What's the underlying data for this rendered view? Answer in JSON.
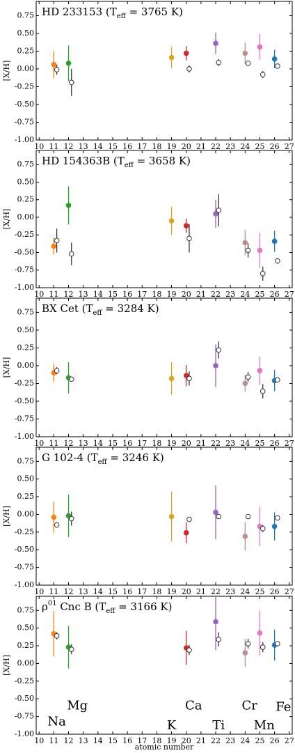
{
  "chart_data": [
    {
      "type": "errorbar",
      "title_parts": [
        {
          "text": "HD 233153 (T"
        },
        {
          "text": "eff",
          "script": "sub"
        },
        {
          "text": " = 3765 K)"
        }
      ],
      "ylabel": "[X/H]",
      "xlim": [
        9.8,
        27.2
      ],
      "ylim": [
        -1.0,
        0.95
      ],
      "xticks": [
        10,
        11,
        12,
        13,
        14,
        15,
        16,
        17,
        18,
        19,
        20,
        21,
        22,
        23,
        24,
        25,
        26,
        27
      ],
      "yticks": [
        0.75,
        {
          "value": 0.5,
          "label": "0.50"
        },
        0.25,
        {
          "value": 0,
          "label": "0.00"
        },
        -0.25,
        {
          "value": -0.5,
          "label": "-0.50"
        },
        -0.75,
        {
          "value": -1,
          "label": "-1.00"
        }
      ],
      "series": [
        {
          "x": [
            11,
            12,
            19,
            20,
            22,
            24,
            25,
            26
          ],
          "colors": [
            "#ff7f0e",
            "#2ca02c",
            "#daa520",
            "#d62728",
            "#9467bd",
            "#bc8f8f",
            "#e377c2",
            "#1f77b4"
          ],
          "filled": true,
          "values": [
            0.06,
            0.08,
            0.16,
            0.22,
            0.36,
            0.22,
            0.31,
            0.14
          ],
          "errors": [
            0.19,
            0.25,
            0.15,
            0.1,
            0.15,
            0.15,
            0.18,
            0.13
          ]
        },
        {
          "x": [
            11.2,
            12.2,
            20.2,
            22.2,
            24.2,
            25.2,
            26.2
          ],
          "color": "#333333",
          "filled": false,
          "values": [
            -0.01,
            -0.19,
            0.0,
            0.09,
            0.08,
            -0.08,
            0.04
          ],
          "errors": [
            0.07,
            0.19,
            0.05,
            0.05,
            0.03,
            0.05,
            0.02
          ]
        }
      ]
    },
    {
      "type": "errorbar",
      "title_parts": [
        {
          "text": "HD 154363B (T"
        },
        {
          "text": "eff",
          "script": "sub"
        },
        {
          "text": " = 3658 K)"
        }
      ],
      "ylabel": "[X/H]",
      "xlim": [
        9.8,
        27.2
      ],
      "ylim": [
        -1.0,
        0.95
      ],
      "xticks": [
        10,
        11,
        12,
        13,
        14,
        15,
        16,
        17,
        18,
        19,
        20,
        21,
        22,
        23,
        24,
        25,
        26,
        27
      ],
      "yticks": [
        0.75,
        {
          "value": 0.5,
          "label": "0.50"
        },
        0.25,
        {
          "value": 0,
          "label": "0.00"
        },
        -0.25,
        {
          "value": -0.5,
          "label": "-0.50"
        },
        -0.75,
        {
          "value": -1,
          "label": "-1.00"
        }
      ],
      "series": [
        {
          "x": [
            11,
            12,
            19,
            20,
            22,
            24,
            25,
            26
          ],
          "colors": [
            "#ff7f0e",
            "#2ca02c",
            "#daa520",
            "#d62728",
            "#9467bd",
            "#bc8f8f",
            "#e377c2",
            "#1f77b4"
          ],
          "filled": true,
          "values": [
            -0.41,
            0.17,
            -0.05,
            -0.12,
            0.05,
            -0.36,
            -0.47,
            -0.34
          ],
          "errors": [
            0.12,
            0.27,
            0.2,
            0.1,
            0.2,
            0.18,
            0.25,
            0.15
          ]
        },
        {
          "x": [
            11.2,
            12.2,
            20.2,
            22.2,
            24.2,
            25.2,
            26.2
          ],
          "color": "#333333",
          "filled": false,
          "values": [
            -0.33,
            -0.52,
            -0.3,
            0.1,
            -0.47,
            -0.8,
            -0.62
          ],
          "errors": [
            0.17,
            0.16,
            0.2,
            0.23,
            0.1,
            0.1,
            0.04
          ]
        }
      ]
    },
    {
      "type": "errorbar",
      "title_parts": [
        {
          "text": "BX Cet (T"
        },
        {
          "text": "eff",
          "script": "sub"
        },
        {
          "text": " = 3284 K)"
        }
      ],
      "ylabel": "[X/H]",
      "xlim": [
        9.8,
        27.2
      ],
      "ylim": [
        -1.0,
        0.95
      ],
      "xticks": [
        10,
        11,
        12,
        13,
        14,
        15,
        16,
        17,
        18,
        19,
        20,
        21,
        22,
        23,
        24,
        25,
        26,
        27
      ],
      "yticks": [
        0.75,
        {
          "value": 0.5,
          "label": "0.50"
        },
        0.25,
        {
          "value": 0,
          "label": "0.00"
        },
        -0.25,
        {
          "value": -0.5,
          "label": "-0.50"
        },
        -0.75,
        {
          "value": -1,
          "label": "-1.00"
        }
      ],
      "series": [
        {
          "x": [
            11,
            12,
            19,
            20,
            22,
            24,
            25,
            26
          ],
          "colors": [
            "#ff7f0e",
            "#2ca02c",
            "#daa520",
            "#d62728",
            "#9467bd",
            "#bc8f8f",
            "#e377c2",
            "#1f77b4"
          ],
          "filled": true,
          "values": [
            -0.1,
            -0.17,
            -0.18,
            -0.14,
            0.0,
            -0.25,
            -0.07,
            -0.21
          ],
          "errors": [
            0.13,
            0.22,
            0.23,
            0.15,
            0.3,
            0.12,
            0.2,
            0.15
          ]
        },
        {
          "x": [
            11.2,
            12.2,
            20.2,
            22.2,
            24.2,
            25.2,
            26.2
          ],
          "color": "#333333",
          "filled": false,
          "values": [
            -0.07,
            -0.19,
            -0.18,
            0.22,
            -0.16,
            -0.36,
            -0.2
          ],
          "errors": [
            0.05,
            0.01,
            0.1,
            0.12,
            0.07,
            0.1,
            0.03
          ]
        }
      ]
    },
    {
      "type": "errorbar",
      "title_parts": [
        {
          "text": "G 102-4 (T"
        },
        {
          "text": "eff",
          "script": "sub"
        },
        {
          "text": " = 3246 K)"
        }
      ],
      "ylabel": "[X/H]",
      "xlim": [
        9.8,
        27.2
      ],
      "ylim": [
        -1.0,
        0.95
      ],
      "xticks": [
        10,
        11,
        12,
        13,
        14,
        15,
        16,
        17,
        18,
        19,
        20,
        21,
        22,
        23,
        24,
        25,
        26,
        27
      ],
      "yticks": [
        0.75,
        {
          "value": 0.5,
          "label": "0.50"
        },
        0.25,
        {
          "value": 0,
          "label": "0.00"
        },
        -0.25,
        {
          "value": -0.5,
          "label": "-0.50"
        },
        -0.75,
        {
          "value": -1,
          "label": "-1.00"
        }
      ],
      "series": [
        {
          "x": [
            11,
            12,
            19,
            20,
            22,
            24,
            25,
            26
          ],
          "colors": [
            "#ff7f0e",
            "#2ca02c",
            "#daa520",
            "#d62728",
            "#9467bd",
            "#bc8f8f",
            "#e377c2",
            "#1f77b4"
          ],
          "filled": true,
          "values": [
            -0.04,
            -0.02,
            -0.03,
            -0.26,
            0.03,
            -0.31,
            -0.17,
            -0.17
          ],
          "errors": [
            0.22,
            0.3,
            0.35,
            0.15,
            0.38,
            0.2,
            0.28,
            0.2
          ]
        },
        {
          "x": [
            11.2,
            12.2,
            20.2,
            22.2,
            24.2,
            25.2,
            26.2
          ],
          "color": "#333333",
          "filled": false,
          "values": [
            -0.15,
            -0.06,
            -0.07,
            -0.03,
            -0.03,
            -0.2,
            -0.05
          ],
          "errors": [
            0,
            0.1,
            0,
            0,
            0,
            0.05,
            0
          ]
        }
      ]
    },
    {
      "type": "errorbar",
      "title_parts": [
        {
          "text": "ρ"
        },
        {
          "text": "01",
          "script": "sup"
        },
        {
          "text": " Cnc B (T"
        },
        {
          "text": "eff",
          "script": "sub"
        },
        {
          "text": " = 3166 K)"
        }
      ],
      "ylabel": "[X/H]",
      "xlabel": "atomic number",
      "xlim": [
        9.8,
        27.2
      ],
      "ylim": [
        -1.0,
        0.95
      ],
      "xticks": [
        10,
        11,
        12,
        13,
        14,
        15,
        16,
        17,
        18,
        19,
        20,
        21,
        22,
        23,
        24,
        25,
        26,
        27
      ],
      "yticks": [
        0.75,
        {
          "value": 0.5,
          "label": "0.50"
        },
        0.25,
        {
          "value": 0,
          "label": "0.00"
        },
        -0.25,
        {
          "value": -0.5,
          "label": "-0.50"
        },
        -0.75,
        {
          "value": -1,
          "label": "-1.00"
        }
      ],
      "series": [
        {
          "x": [
            11,
            12,
            20,
            22,
            24,
            25,
            26
          ],
          "colors": [
            "#ff7f0e",
            "#2ca02c",
            "#d62728",
            "#9467bd",
            "#bc8f8f",
            "#e377c2",
            "#1f77b4"
          ],
          "filled": true,
          "values": [
            0.42,
            0.23,
            0.22,
            0.59,
            0.15,
            0.43,
            0.26
          ],
          "errors": [
            0.32,
            0.3,
            0.24,
            0.4,
            0.2,
            0.32,
            0.22
          ]
        },
        {
          "x": [
            11.2,
            12.2,
            20.2,
            22.2,
            24.2,
            25.2,
            26.2
          ],
          "color": "#333333",
          "filled": false,
          "values": [
            0.39,
            0.2,
            0.19,
            0.34,
            0.28,
            0.23,
            0.28
          ],
          "errors": [
            0.05,
            0.07,
            0.07,
            0.1,
            0.07,
            0.07,
            0.03
          ]
        }
      ],
      "annotations": [
        {
          "text": "Mg",
          "color": "#2ca02c"
        },
        {
          "text": "Na",
          "color": "#ff7f0e"
        },
        {
          "text": "K",
          "color": "#daa520"
        },
        {
          "text": "Ca",
          "color": "#d62728"
        },
        {
          "text": "Ti",
          "color": "#9467bd"
        },
        {
          "text": "Cr",
          "color": "#bc8f8f"
        },
        {
          "text": "Mn",
          "color": "#e377c2"
        },
        {
          "text": "Fe",
          "color": "#1f77b4"
        }
      ]
    }
  ]
}
